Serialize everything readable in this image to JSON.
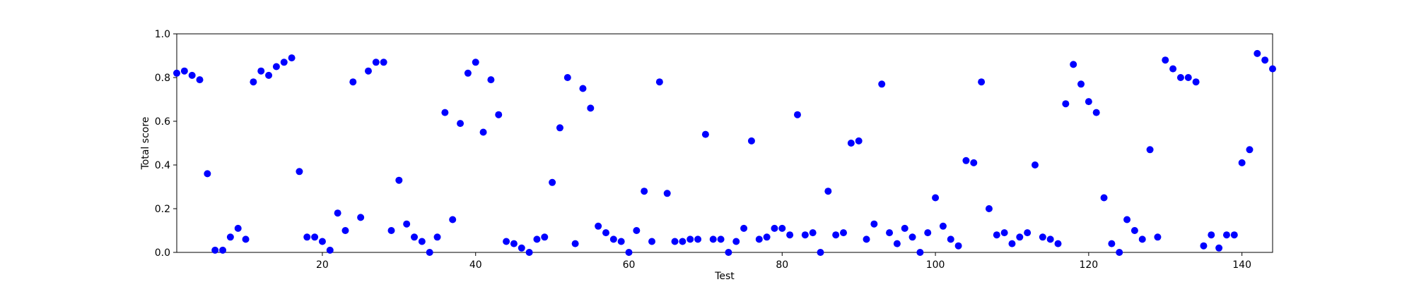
{
  "chart_data": {
    "type": "scatter",
    "title": "",
    "xlabel": "Test",
    "ylabel": "Total score",
    "xlim": [
      1,
      144
    ],
    "ylim": [
      0.0,
      1.0
    ],
    "xticks": [
      20,
      40,
      60,
      80,
      100,
      120,
      140
    ],
    "yticks": [
      "0.0",
      "0.2",
      "0.4",
      "0.6",
      "0.8",
      "1.0"
    ],
    "grid": false,
    "legend": "none",
    "marker_color": "#0000ff",
    "series": [
      {
        "x": [
          1,
          2,
          3,
          4,
          5,
          6,
          7,
          8,
          9,
          10,
          11,
          12,
          13,
          14,
          15,
          16,
          17,
          18,
          19,
          20,
          21,
          22,
          23,
          24,
          25,
          26,
          27,
          28,
          29,
          30,
          31,
          32,
          33,
          34,
          35,
          36,
          37,
          38,
          39,
          40,
          41,
          42,
          43,
          44,
          45,
          46,
          47,
          48,
          49,
          50,
          51,
          52,
          53,
          54,
          55,
          56,
          57,
          58,
          59,
          60,
          61,
          62,
          63,
          64,
          65,
          66,
          67,
          68,
          69,
          70,
          71,
          72,
          73,
          74,
          75,
          76,
          77,
          78,
          79,
          80,
          81,
          82,
          83,
          84,
          85,
          86,
          87,
          88,
          89,
          90,
          91,
          92,
          93,
          94,
          95,
          96,
          97,
          98,
          99,
          100,
          101,
          102,
          103,
          104,
          105,
          106,
          107,
          108,
          109,
          110,
          111,
          112,
          113,
          114,
          115,
          116,
          117,
          118,
          119,
          120,
          121,
          122,
          123,
          124,
          125,
          126,
          127,
          128,
          129,
          130,
          131,
          132,
          133,
          134,
          135,
          136,
          137,
          138,
          139,
          140,
          141,
          142,
          143,
          144
        ],
        "y": [
          0.82,
          0.83,
          0.81,
          0.79,
          0.36,
          0.01,
          0.01,
          0.07,
          0.11,
          0.06,
          0.78,
          0.83,
          0.81,
          0.85,
          0.87,
          0.89,
          0.37,
          0.07,
          0.07,
          0.05,
          0.01,
          0.18,
          0.1,
          0.78,
          0.16,
          0.83,
          0.87,
          0.87,
          0.1,
          0.33,
          0.13,
          0.07,
          0.05,
          0.0,
          0.07,
          0.64,
          0.15,
          0.59,
          0.82,
          0.87,
          0.55,
          0.79,
          0.63,
          0.05,
          0.04,
          0.02,
          0.0,
          0.06,
          0.07,
          0.32,
          0.57,
          0.8,
          0.04,
          0.75,
          0.66,
          0.12,
          0.09,
          0.06,
          0.05,
          0.0,
          0.1,
          0.28,
          0.05,
          0.78,
          0.27,
          0.05,
          0.05,
          0.06,
          0.06,
          0.54,
          0.06,
          0.06,
          0.0,
          0.05,
          0.11,
          0.51,
          0.06,
          0.07,
          0.11,
          0.11,
          0.08,
          0.63,
          0.08,
          0.09,
          0.0,
          0.28,
          0.08,
          0.09,
          0.5,
          0.51,
          0.06,
          0.13,
          0.77,
          0.09,
          0.04,
          0.11,
          0.07,
          0.0,
          0.09,
          0.25,
          0.12,
          0.06,
          0.03,
          0.42,
          0.41,
          0.78,
          0.2,
          0.08,
          0.09,
          0.04,
          0.07,
          0.09,
          0.4,
          0.07,
          0.06,
          0.04,
          0.68,
          0.86,
          0.77,
          0.69,
          0.64,
          0.25,
          0.04,
          0.0,
          0.15,
          0.1,
          0.06,
          0.47,
          0.07,
          0.88,
          0.84,
          0.8,
          0.8,
          0.78,
          0.03,
          0.08,
          0.02,
          0.08,
          0.08,
          0.41,
          0.47,
          0.91,
          0.88,
          0.84
        ]
      }
    ]
  }
}
